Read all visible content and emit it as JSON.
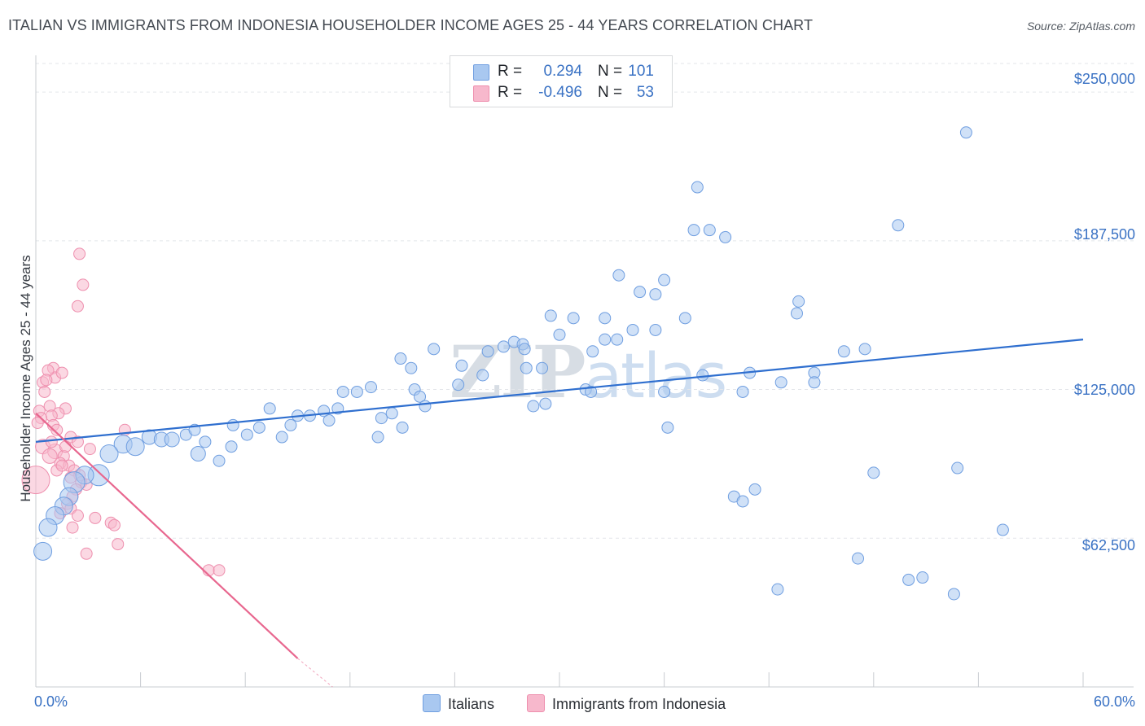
{
  "header": {
    "title": "ITALIAN VS IMMIGRANTS FROM INDONESIA HOUSEHOLDER INCOME AGES 25 - 44 YEARS CORRELATION CHART",
    "source": "Source: ZipAtlas.com"
  },
  "watermark": {
    "zip": "ZIP",
    "atlas": "atlas"
  },
  "stats": {
    "rows": [
      {
        "r_label": "R =",
        "r_value": "0.294",
        "n_label": "N =",
        "n_value": "101",
        "color": "#a9c8f0"
      },
      {
        "r_label": "R =",
        "r_value": "-0.496",
        "n_label": "N =",
        "n_value": "53",
        "color": "#f7b8cc"
      }
    ]
  },
  "legend": {
    "italians": "Italians",
    "indonesia": "Immigrants from Indonesia"
  },
  "colors": {
    "italians_fill": "#a9c8f0",
    "italians_stroke": "#6f9ee0",
    "italians_line": "#2f6fcf",
    "indonesia_fill": "#f7b8cc",
    "indonesia_stroke": "#ee8fae",
    "indonesia_line": "#e8678f",
    "tick_text": "#3a72c4",
    "grid": "#e3e6ea"
  },
  "chart_data": {
    "type": "scatter",
    "title": "ITALIAN VS IMMIGRANTS FROM INDONESIA HOUSEHOLDER INCOME AGES 25 - 44 YEARS CORRELATION CHART",
    "xlabel": "",
    "ylabel": "Householder Income Ages 25 - 44 years",
    "xlim": [
      0,
      60
    ],
    "ylim": [
      0,
      262000
    ],
    "x_tick_labels": [
      "0.0%",
      "60.0%"
    ],
    "y_ticks": [
      62500,
      125000,
      187500,
      250000
    ],
    "y_tick_labels": [
      "$62,500",
      "$125,000",
      "$187,500",
      "$250,000"
    ],
    "grid": true,
    "legend_position": "bottom-center",
    "series": [
      {
        "name": "Italians",
        "r": 0.294,
        "n": 101,
        "trend": {
          "x": [
            0,
            60
          ],
          "y": [
            103000,
            146000
          ]
        },
        "points": [
          [
            53.3,
            233000,
            7
          ],
          [
            37.9,
            210000,
            7
          ],
          [
            49.4,
            194000,
            7
          ],
          [
            37.7,
            192000,
            7
          ],
          [
            38.6,
            192000,
            7
          ],
          [
            39.5,
            189000,
            7
          ],
          [
            33.4,
            173000,
            7
          ],
          [
            36.0,
            171000,
            7
          ],
          [
            34.6,
            166000,
            7
          ],
          [
            35.5,
            165000,
            7
          ],
          [
            43.7,
            162000,
            7
          ],
          [
            29.5,
            156000,
            7
          ],
          [
            30.8,
            155000,
            7
          ],
          [
            32.6,
            155000,
            7
          ],
          [
            37.2,
            155000,
            7
          ],
          [
            43.6,
            157000,
            7
          ],
          [
            30.0,
            148000,
            7
          ],
          [
            34.2,
            150000,
            7
          ],
          [
            35.5,
            150000,
            7
          ],
          [
            32.6,
            146000,
            7
          ],
          [
            33.3,
            146000,
            7
          ],
          [
            27.4,
            145000,
            7
          ],
          [
            27.9,
            144000,
            7
          ],
          [
            22.8,
            142000,
            7
          ],
          [
            25.9,
            141000,
            7
          ],
          [
            26.8,
            143000,
            7
          ],
          [
            28.0,
            142000,
            7
          ],
          [
            31.9,
            141000,
            7
          ],
          [
            20.9,
            138000,
            7
          ],
          [
            46.3,
            141000,
            7
          ],
          [
            47.5,
            142000,
            7
          ],
          [
            21.5,
            134000,
            7
          ],
          [
            24.4,
            135000,
            7
          ],
          [
            25.6,
            131000,
            7
          ],
          [
            28.1,
            134000,
            7
          ],
          [
            29.0,
            134000,
            7
          ],
          [
            38.2,
            131000,
            7
          ],
          [
            40.9,
            132000,
            7
          ],
          [
            44.6,
            132000,
            7
          ],
          [
            19.2,
            126000,
            7
          ],
          [
            21.7,
            125000,
            7
          ],
          [
            17.6,
            124000,
            7
          ],
          [
            18.4,
            124000,
            7
          ],
          [
            22.0,
            122000,
            7
          ],
          [
            24.2,
            127000,
            7
          ],
          [
            31.5,
            125000,
            7
          ],
          [
            40.5,
            124000,
            7
          ],
          [
            42.7,
            128000,
            7
          ],
          [
            44.6,
            128000,
            7
          ],
          [
            28.5,
            118000,
            7
          ],
          [
            29.2,
            119000,
            7
          ],
          [
            13.4,
            117000,
            7
          ],
          [
            15.0,
            114000,
            7
          ],
          [
            15.7,
            114000,
            7
          ],
          [
            16.5,
            116000,
            7
          ],
          [
            17.3,
            117000,
            7
          ],
          [
            20.4,
            115000,
            7
          ],
          [
            22.3,
            118000,
            7
          ],
          [
            14.6,
            110000,
            7
          ],
          [
            16.8,
            112000,
            7
          ],
          [
            19.8,
            113000,
            7
          ],
          [
            11.3,
            110000,
            7
          ],
          [
            12.1,
            106000,
            7
          ],
          [
            12.8,
            109000,
            7
          ],
          [
            14.1,
            105000,
            7
          ],
          [
            19.6,
            105000,
            7
          ],
          [
            21.0,
            109000,
            7
          ],
          [
            36.2,
            109000,
            7
          ],
          [
            6.5,
            105000,
            9
          ],
          [
            7.2,
            104000,
            9
          ],
          [
            7.8,
            104000,
            9
          ],
          [
            8.6,
            106000,
            7
          ],
          [
            9.1,
            108000,
            7
          ],
          [
            9.7,
            103000,
            7
          ],
          [
            5.0,
            102000,
            11
          ],
          [
            5.7,
            101000,
            11
          ],
          [
            4.2,
            98000,
            11
          ],
          [
            9.3,
            98000,
            9
          ],
          [
            10.5,
            95000,
            7
          ],
          [
            11.2,
            101000,
            7
          ],
          [
            3.6,
            89000,
            13
          ],
          [
            2.8,
            89000,
            11
          ],
          [
            2.2,
            86000,
            13
          ],
          [
            1.9,
            80000,
            11
          ],
          [
            1.6,
            76000,
            11
          ],
          [
            1.1,
            72000,
            11
          ],
          [
            0.7,
            67000,
            11
          ],
          [
            0.4,
            57000,
            11
          ],
          [
            41.2,
            83000,
            7
          ],
          [
            40.0,
            80000,
            7
          ],
          [
            40.5,
            78000,
            7
          ],
          [
            48.0,
            90000,
            7
          ],
          [
            52.8,
            92000,
            7
          ],
          [
            55.4,
            66000,
            7
          ],
          [
            47.1,
            54000,
            7
          ],
          [
            50.0,
            45000,
            7
          ],
          [
            50.8,
            46000,
            7
          ],
          [
            52.6,
            39000,
            7
          ],
          [
            42.5,
            41000,
            7
          ],
          [
            36.0,
            124000,
            7
          ],
          [
            31.8,
            124000,
            7
          ]
        ]
      },
      {
        "name": "Immigrants from Indonesia",
        "r": -0.496,
        "n": 53,
        "trend": {
          "x": [
            0,
            15
          ],
          "y": [
            115000,
            12000
          ]
        },
        "trend_dashed": {
          "x": [
            15,
            17
          ],
          "y": [
            12000,
            0
          ]
        },
        "points": [
          [
            2.5,
            182000,
            7
          ],
          [
            2.7,
            169000,
            7
          ],
          [
            2.4,
            160000,
            7
          ],
          [
            1.0,
            134000,
            7
          ],
          [
            1.1,
            130000,
            7
          ],
          [
            0.7,
            133000,
            7
          ],
          [
            1.5,
            132000,
            7
          ],
          [
            0.4,
            128000,
            7
          ],
          [
            0.6,
            129000,
            7
          ],
          [
            0.5,
            124000,
            7
          ],
          [
            0.8,
            118000,
            7
          ],
          [
            1.7,
            117000,
            7
          ],
          [
            0.2,
            116000,
            7
          ],
          [
            1.3,
            115000,
            7
          ],
          [
            0.9,
            114000,
            7
          ],
          [
            0.3,
            113000,
            7
          ],
          [
            0.1,
            111000,
            7
          ],
          [
            1.0,
            110000,
            7
          ],
          [
            1.2,
            108000,
            7
          ],
          [
            2.0,
            105000,
            7
          ],
          [
            2.4,
            103000,
            7
          ],
          [
            0.4,
            101000,
            9
          ],
          [
            1.1,
            99000,
            9
          ],
          [
            0.8,
            97000,
            9
          ],
          [
            1.6,
            97000,
            7
          ],
          [
            1.4,
            94000,
            7
          ],
          [
            1.9,
            93000,
            7
          ],
          [
            1.2,
            91000,
            7
          ],
          [
            2.2,
            91000,
            7
          ],
          [
            2.5,
            89000,
            7
          ],
          [
            5.1,
            108000,
            7
          ],
          [
            3.1,
            100000,
            7
          ],
          [
            0.0,
            87000,
            17
          ],
          [
            2.6,
            86000,
            7
          ],
          [
            2.9,
            85000,
            7
          ],
          [
            2.3,
            83000,
            7
          ],
          [
            2.1,
            80000,
            7
          ],
          [
            1.8,
            77000,
            7
          ],
          [
            2.0,
            75000,
            7
          ],
          [
            1.4,
            73000,
            7
          ],
          [
            2.4,
            72000,
            7
          ],
          [
            3.4,
            71000,
            7
          ],
          [
            4.3,
            69000,
            7
          ],
          [
            4.5,
            68000,
            7
          ],
          [
            2.1,
            67000,
            7
          ],
          [
            4.7,
            60000,
            7
          ],
          [
            2.9,
            56000,
            7
          ],
          [
            9.9,
            49000,
            7
          ],
          [
            10.5,
            49000,
            7
          ],
          [
            2.0,
            88000,
            7
          ],
          [
            1.5,
            93000,
            7
          ],
          [
            0.9,
            103000,
            7
          ],
          [
            1.7,
            101000,
            7
          ]
        ]
      }
    ]
  }
}
